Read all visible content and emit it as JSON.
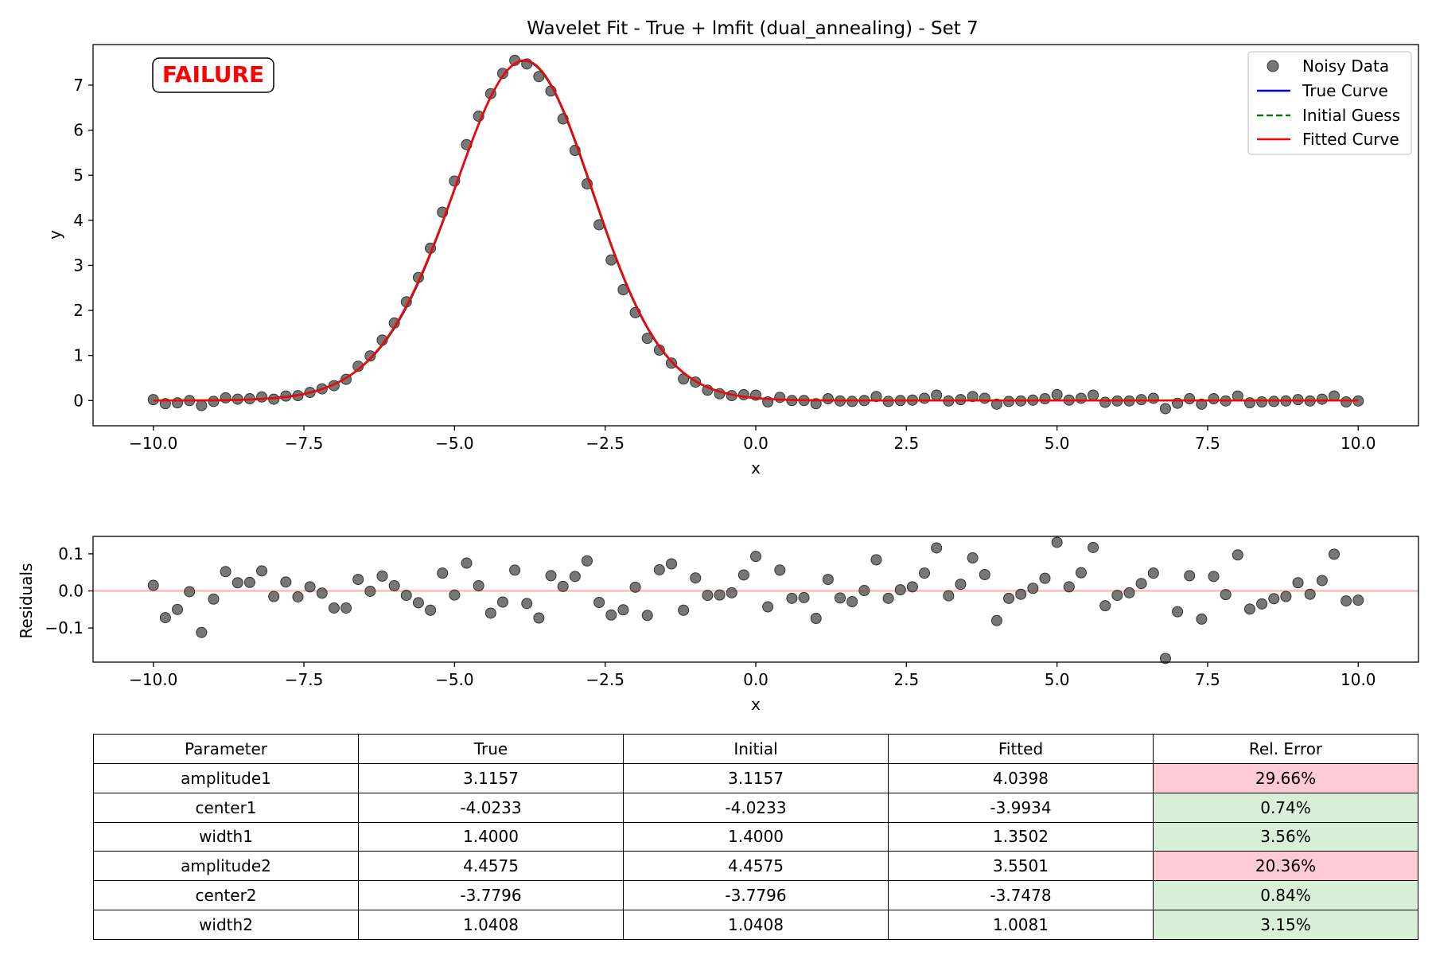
{
  "chart_data": [
    {
      "type": "scatter",
      "title": "Wavelet Fit - True + lmfit (dual_annealing) - Set 7",
      "xlabel": "x",
      "ylabel": "y",
      "xlim": [
        -11.0,
        11.0
      ],
      "ylim": [
        -0.56,
        7.9
      ],
      "x_ticks": [
        -10.0,
        -7.5,
        -5.0,
        -2.5,
        0.0,
        2.5,
        5.0,
        7.5,
        10.0
      ],
      "x_tick_labels": [
        "−10.0",
        "−7.5",
        "−5.0",
        "−2.5",
        "0.0",
        "2.5",
        "5.0",
        "7.5",
        "10.0"
      ],
      "y_ticks": [
        0,
        1,
        2,
        3,
        4,
        5,
        6,
        7
      ],
      "y_tick_labels": [
        "0",
        "1",
        "2",
        "3",
        "4",
        "5",
        "6",
        "7"
      ],
      "grid": false,
      "legend": {
        "position": "upper right",
        "entries": [
          "Noisy Data",
          "True Curve",
          "Initial Guess",
          "Fitted Curve"
        ]
      },
      "annotation": "FAILURE",
      "series": [
        {
          "name": "Noisy Data",
          "marker": "circle",
          "color": "#555555",
          "x": [
            -10.0,
            -9.8,
            -9.6,
            -9.4,
            -9.2,
            -9.0,
            -8.8,
            -8.6,
            -8.4,
            -8.2,
            -8.0,
            -7.8,
            -7.6,
            -7.4,
            -7.2,
            -7.0,
            -6.8,
            -6.6,
            -6.4,
            -6.2,
            -6.0,
            -5.8,
            -5.6,
            -5.4,
            -5.2,
            -5.0,
            -4.8,
            -4.6,
            -4.4,
            -4.2,
            -4.0,
            -3.8,
            -3.6,
            -3.4,
            -3.2,
            -3.0,
            -2.8,
            -2.6,
            -2.4,
            -2.2,
            -2.0,
            -1.8,
            -1.6,
            -1.4,
            -1.2,
            -1.0,
            -0.8,
            -0.6,
            -0.4,
            -0.2,
            0.0,
            0.2,
            0.4,
            0.6,
            0.8,
            1.0,
            1.2,
            1.4,
            1.6,
            1.8,
            2.0,
            2.2,
            2.4,
            2.6,
            2.8,
            3.0,
            3.2,
            3.4,
            3.6,
            3.8,
            4.0,
            4.2,
            4.4,
            4.6,
            4.8,
            5.0,
            5.2,
            5.4,
            5.6,
            5.8,
            6.0,
            6.2,
            6.4,
            6.6,
            6.8,
            7.0,
            7.2,
            7.4,
            7.6,
            7.8,
            8.0,
            8.2,
            8.4,
            8.6,
            8.8,
            9.0,
            9.2,
            9.4,
            9.6,
            9.8,
            10.0
          ],
          "y": [
            0.02,
            -0.07,
            -0.05,
            0.0,
            -0.11,
            -0.02,
            0.06,
            0.03,
            0.04,
            0.08,
            0.03,
            0.1,
            0.11,
            0.18,
            0.26,
            0.33,
            0.47,
            0.76,
            0.99,
            1.34,
            1.72,
            2.19,
            2.73,
            3.38,
            4.18,
            4.87,
            5.68,
            6.31,
            6.81,
            7.26,
            7.55,
            7.47,
            7.19,
            6.87,
            6.25,
            5.55,
            4.81,
            3.9,
            3.12,
            2.46,
            1.95,
            1.38,
            1.12,
            0.83,
            0.48,
            0.41,
            0.23,
            0.15,
            0.11,
            0.13,
            0.12,
            -0.03,
            0.07,
            0.0,
            0.0,
            -0.07,
            0.04,
            -0.01,
            -0.02,
            0.0,
            0.09,
            -0.02,
            0.0,
            0.01,
            0.05,
            0.12,
            -0.01,
            0.02,
            0.09,
            0.05,
            -0.08,
            -0.02,
            -0.01,
            0.01,
            0.04,
            0.13,
            0.01,
            0.05,
            0.12,
            -0.04,
            -0.01,
            -0.01,
            0.02,
            0.05,
            -0.18,
            -0.06,
            0.04,
            -0.08,
            0.04,
            -0.01,
            0.1,
            -0.05,
            -0.03,
            -0.02,
            -0.01,
            0.02,
            -0.01,
            0.03,
            0.1,
            -0.03,
            -0.01
          ]
        },
        {
          "name": "True Curve",
          "line": "solid",
          "color": "#0000ff"
        },
        {
          "name": "Initial Guess",
          "line": "dashed",
          "color": "#008000"
        },
        {
          "name": "Fitted Curve",
          "line": "solid",
          "color": "#ff0000"
        }
      ]
    },
    {
      "type": "scatter",
      "xlabel": "x",
      "ylabel": "Residuals",
      "xlim": [
        -11.0,
        11.0
      ],
      "ylim": [
        -0.192,
        0.147
      ],
      "x_ticks": [
        -10.0,
        -7.5,
        -5.0,
        -2.5,
        0.0,
        2.5,
        5.0,
        7.5,
        10.0
      ],
      "x_tick_labels": [
        "−10.0",
        "−7.5",
        "−5.0",
        "−2.5",
        "0.0",
        "2.5",
        "5.0",
        "7.5",
        "10.0"
      ],
      "y_ticks": [
        -0.1,
        0.0,
        0.1
      ],
      "y_tick_labels": [
        "−0.1",
        "0.0",
        "0.1"
      ],
      "grid": false,
      "zero_line_color": "#ffb3b3",
      "series": [
        {
          "marker": "circle",
          "color": "#555555",
          "x": [
            -10.0,
            -9.8,
            -9.6,
            -9.4,
            -9.2,
            -9.0,
            -8.8,
            -8.6,
            -8.4,
            -8.2,
            -8.0,
            -7.8,
            -7.6,
            -7.4,
            -7.2,
            -7.0,
            -6.8,
            -6.6,
            -6.4,
            -6.2,
            -6.0,
            -5.8,
            -5.6,
            -5.4,
            -5.2,
            -5.0,
            -4.8,
            -4.6,
            -4.4,
            -4.2,
            -4.0,
            -3.8,
            -3.6,
            -3.4,
            -3.2,
            -3.0,
            -2.8,
            -2.6,
            -2.4,
            -2.2,
            -2.0,
            -1.8,
            -1.6,
            -1.4,
            -1.2,
            -1.0,
            -0.8,
            -0.6,
            -0.4,
            -0.2,
            0.0,
            0.2,
            0.4,
            0.6,
            0.8,
            1.0,
            1.2,
            1.4,
            1.6,
            1.8,
            2.0,
            2.2,
            2.4,
            2.6,
            2.8,
            3.0,
            3.2,
            3.4,
            3.6,
            3.8,
            4.0,
            4.2,
            4.4,
            4.6,
            4.8,
            5.0,
            5.2,
            5.4,
            5.6,
            5.8,
            6.0,
            6.2,
            6.4,
            6.6,
            6.8,
            7.0,
            7.2,
            7.4,
            7.6,
            7.8,
            8.0,
            8.2,
            8.4,
            8.6,
            8.8,
            9.0,
            9.2,
            9.4,
            9.6,
            9.8,
            10.0
          ],
          "y": [
            0.015,
            -0.072,
            -0.05,
            -0.002,
            -0.112,
            -0.022,
            0.052,
            0.022,
            0.023,
            0.054,
            -0.015,
            0.024,
            -0.016,
            0.011,
            -0.006,
            -0.046,
            -0.046,
            0.031,
            -0.001,
            0.04,
            0.014,
            -0.012,
            -0.032,
            -0.052,
            0.048,
            -0.011,
            0.075,
            0.014,
            -0.06,
            -0.03,
            0.056,
            -0.034,
            -0.073,
            0.041,
            0.012,
            0.039,
            0.081,
            -0.031,
            -0.065,
            -0.051,
            0.01,
            -0.066,
            0.057,
            0.073,
            -0.052,
            0.035,
            -0.012,
            -0.011,
            -0.005,
            0.043,
            0.093,
            -0.043,
            0.056,
            -0.02,
            -0.018,
            -0.074,
            0.031,
            -0.019,
            -0.029,
            0.001,
            0.084,
            -0.02,
            0.003,
            0.011,
            0.048,
            0.116,
            -0.013,
            0.018,
            0.089,
            0.044,
            -0.08,
            -0.02,
            -0.009,
            0.007,
            0.034,
            0.131,
            0.011,
            0.049,
            0.117,
            -0.04,
            -0.012,
            -0.005,
            0.02,
            0.048,
            -0.182,
            -0.056,
            0.041,
            -0.076,
            0.039,
            -0.01,
            0.097,
            -0.049,
            -0.035,
            -0.021,
            -0.015,
            0.022,
            -0.009,
            0.028,
            0.099,
            -0.027,
            -0.025
          ]
        }
      ]
    },
    {
      "type": "table",
      "columns": [
        "Parameter",
        "True",
        "Initial",
        "Fitted",
        "Rel. Error"
      ],
      "rows": [
        [
          "amplitude1",
          "3.1157",
          "3.1157",
          "4.0398",
          "29.66%"
        ],
        [
          "center1",
          "-4.0233",
          "-4.0233",
          "-3.9934",
          "0.74%"
        ],
        [
          "width1",
          "1.4000",
          "1.4000",
          "1.3502",
          "3.56%"
        ],
        [
          "amplitude2",
          "4.4575",
          "4.4575",
          "3.5501",
          "20.36%"
        ],
        [
          "center2",
          "-3.7796",
          "-3.7796",
          "-3.7478",
          "0.84%"
        ],
        [
          "width2",
          "1.0408",
          "1.0408",
          "1.0081",
          "3.15%"
        ]
      ],
      "rel_error_status": [
        "bad",
        "ok",
        "ok",
        "bad",
        "ok",
        "ok"
      ],
      "status_colors": {
        "ok": "#d8f0d8",
        "bad": "#fecbd4"
      }
    }
  ],
  "fit_params": {
    "amplitude1": 4.0398,
    "center1": -3.9934,
    "width1": 1.3502,
    "amplitude2": 3.5501,
    "center2": -3.7478,
    "width2": 1.0081
  },
  "true_params": {
    "amplitude1": 3.1157,
    "center1": -4.0233,
    "width1": 1.4,
    "amplitude2": 4.4575,
    "center2": -3.7796,
    "width2": 1.0408
  }
}
